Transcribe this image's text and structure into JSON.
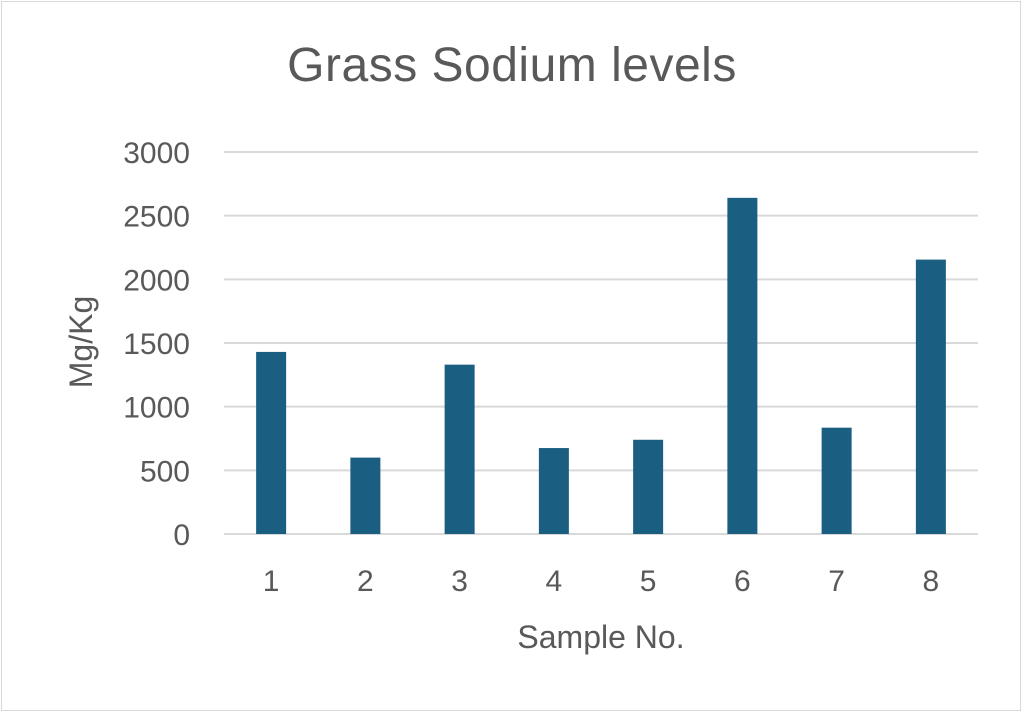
{
  "chart_data": {
    "type": "bar",
    "title": "Grass Sodium levels",
    "xlabel": "Sample No.",
    "ylabel": "Mg/Kg",
    "categories": [
      "1",
      "2",
      "3",
      "4",
      "5",
      "6",
      "7",
      "8"
    ],
    "values": [
      1430,
      600,
      1330,
      675,
      740,
      2640,
      835,
      2155
    ],
    "ylim": [
      0,
      3000
    ],
    "yticks": [
      "0",
      "500",
      "1000",
      "1500",
      "2000",
      "2500",
      "3000"
    ],
    "grid": true,
    "legend": "none",
    "bar_color": "#1a5e82",
    "grid_color": "#d9d9d9",
    "text_color": "#595959"
  }
}
